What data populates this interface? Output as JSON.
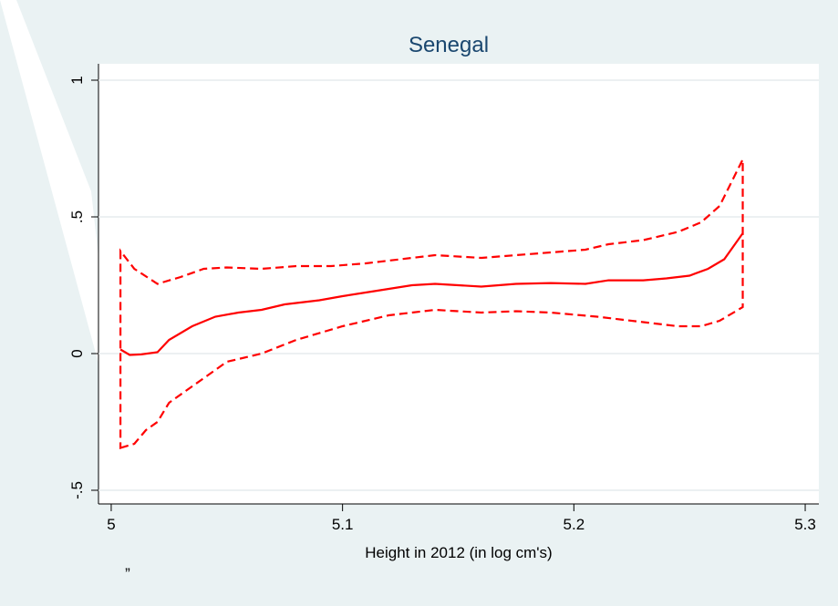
{
  "chart_data": {
    "type": "line",
    "title": "Senegal",
    "x_label": "Height in 2012 (in log cm's)",
    "note": "”",
    "xlim": [
      4.9945,
      5.3059
    ],
    "ylim": [
      -0.55,
      1.06
    ],
    "xticks": [
      5,
      5.1,
      5.2,
      5.3
    ],
    "yticks": [
      {
        "value": -0.5,
        "label": "-.5"
      },
      0,
      {
        "value": 0.5,
        "label": ".5"
      },
      1
    ],
    "grid": true,
    "series": [
      {
        "color": "#ff0000",
        "dashed": false,
        "closed": false,
        "x": [
          5.004,
          5.008,
          5.013,
          5.02,
          5.025,
          5.035,
          5.045,
          5.055,
          5.065,
          5.075,
          5.09,
          5.1,
          5.115,
          5.13,
          5.14,
          5.15,
          5.16,
          5.175,
          5.19,
          5.205,
          5.215,
          5.23,
          5.24,
          5.25,
          5.258,
          5.265,
          5.273
        ],
        "values": [
          0.015,
          -0.005,
          -0.003,
          0.005,
          0.05,
          0.1,
          0.135,
          0.15,
          0.16,
          0.18,
          0.195,
          0.21,
          0.23,
          0.25,
          0.255,
          0.25,
          0.245,
          0.255,
          0.258,
          0.255,
          0.268,
          0.268,
          0.275,
          0.285,
          0.31,
          0.345,
          0.44
        ]
      },
      {
        "color": "#ff0000",
        "dashed": true,
        "closed": true,
        "x": [
          5.004,
          5.01,
          5.015,
          5.02,
          5.025,
          5.035,
          5.05,
          5.065,
          5.08,
          5.1,
          5.12,
          5.14,
          5.16,
          5.175,
          5.19,
          5.21,
          5.23,
          5.245,
          5.255,
          5.263,
          5.273,
          5.273,
          5.263,
          5.255,
          5.245,
          5.23,
          5.215,
          5.205,
          5.19,
          5.175,
          5.16,
          5.14,
          5.125,
          5.11,
          5.095,
          5.08,
          5.065,
          5.05,
          5.04,
          5.03,
          5.02,
          5.01,
          5.004
        ],
        "values": [
          -0.345,
          -0.33,
          -0.28,
          -0.25,
          -0.18,
          -0.12,
          -0.03,
          0.0,
          0.05,
          0.1,
          0.14,
          0.16,
          0.15,
          0.155,
          0.15,
          0.135,
          0.115,
          0.1,
          0.1,
          0.12,
          0.17,
          0.71,
          0.54,
          0.48,
          0.445,
          0.415,
          0.4,
          0.38,
          0.37,
          0.36,
          0.35,
          0.36,
          0.345,
          0.33,
          0.32,
          0.32,
          0.31,
          0.315,
          0.31,
          0.28,
          0.255,
          0.31,
          0.375
        ]
      }
    ]
  }
}
